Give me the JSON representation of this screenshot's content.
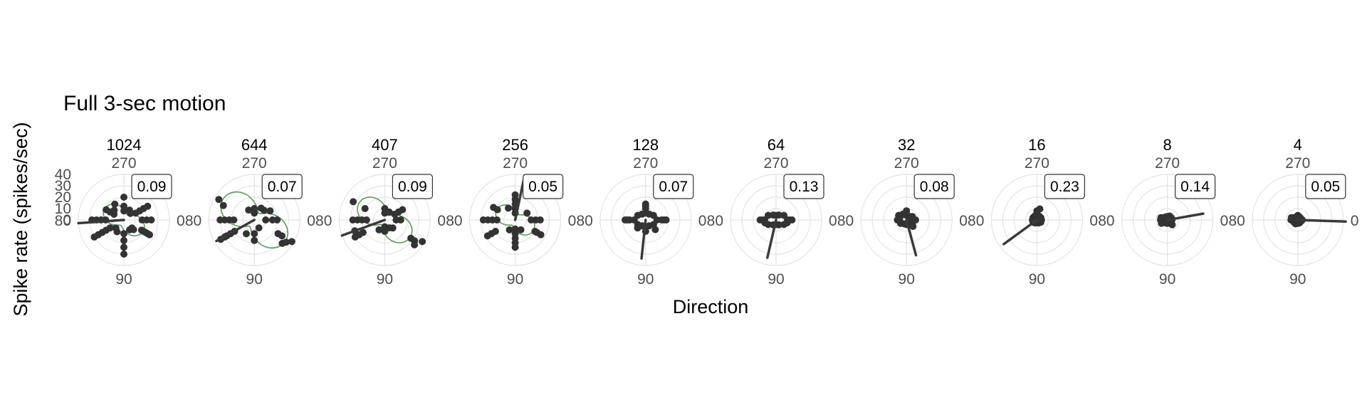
{
  "chart_data": {
    "type": "scatter",
    "coordinate_system": "polar",
    "title": "Full 3-sec motion",
    "xlabel": "Direction",
    "ylabel": "Spike rate (spikes/sec)",
    "radial_ticks": [
      0,
      10,
      20,
      30,
      40
    ],
    "radial_range": [
      0,
      40
    ],
    "angle_tick_labels": [
      "0",
      "90",
      "180",
      "270"
    ],
    "angle_tick_labels_shown": [
      "0",
      "90",
      "80",
      "270"
    ],
    "grid": true,
    "facets": [
      {
        "label": "1024",
        "index_value": "0.09",
        "points": [
          [
            30,
            18
          ],
          [
            30,
            20
          ],
          [
            30,
            22
          ],
          [
            30,
            24
          ],
          [
            30,
            26
          ],
          [
            45,
            10
          ],
          [
            45,
            12
          ],
          [
            90,
            12
          ],
          [
            90,
            18
          ],
          [
            90,
            24
          ],
          [
            90,
            30
          ],
          [
            120,
            12
          ],
          [
            135,
            10
          ],
          [
            150,
            14
          ],
          [
            150,
            18
          ],
          [
            150,
            22
          ],
          [
            150,
            26
          ],
          [
            150,
            30
          ],
          [
            180,
            16
          ],
          [
            180,
            20
          ],
          [
            180,
            24
          ],
          [
            180,
            28
          ],
          [
            210,
            10
          ],
          [
            210,
            14
          ],
          [
            210,
            18
          ],
          [
            225,
            12
          ],
          [
            240,
            16
          ],
          [
            270,
            8
          ],
          [
            270,
            12
          ],
          [
            270,
            20
          ],
          [
            300,
            10
          ],
          [
            330,
            12
          ],
          [
            330,
            16
          ],
          [
            330,
            20
          ],
          [
            330,
            24
          ],
          [
            0,
            16
          ],
          [
            0,
            20
          ],
          [
            0,
            24
          ],
          [
            315,
            8
          ],
          [
            60,
            10
          ]
        ],
        "vector": {
          "angle": 176,
          "length": 40
        },
        "fit": {
          "b0": 12.5,
          "amp": 7.0,
          "phase": 30
        }
      },
      {
        "label": "644",
        "index_value": "0.07",
        "points": [
          [
            30,
            24
          ],
          [
            30,
            28
          ],
          [
            35,
            34
          ],
          [
            30,
            38
          ],
          [
            40,
            32
          ],
          [
            150,
            20
          ],
          [
            150,
            24
          ],
          [
            150,
            28
          ],
          [
            150,
            30
          ],
          [
            150,
            34
          ],
          [
            210,
            36
          ],
          [
            205,
            30
          ],
          [
            180,
            18
          ],
          [
            180,
            22
          ],
          [
            180,
            26
          ],
          [
            180,
            30
          ],
          [
            90,
            12
          ],
          [
            90,
            18
          ],
          [
            270,
            6
          ],
          [
            270,
            10
          ],
          [
            315,
            12
          ],
          [
            330,
            16
          ],
          [
            300,
            12
          ],
          [
            0,
            10
          ],
          [
            0,
            16
          ],
          [
            0,
            20
          ],
          [
            60,
            8
          ],
          [
            120,
            14
          ],
          [
            240,
            10
          ]
        ],
        "vector": {
          "angle": 151,
          "length": 38
        },
        "fit": {
          "b0": 20.0,
          "amp": 13.0,
          "phase": 35
        }
      },
      {
        "label": "407",
        "index_value": "0.09",
        "points": [
          [
            35,
            28
          ],
          [
            35,
            32
          ],
          [
            30,
            38
          ],
          [
            40,
            34
          ],
          [
            150,
            22
          ],
          [
            150,
            26
          ],
          [
            150,
            30
          ],
          [
            160,
            28
          ],
          [
            210,
            32
          ],
          [
            210,
            20
          ],
          [
            180,
            16
          ],
          [
            180,
            20
          ],
          [
            180,
            24
          ],
          [
            180,
            28
          ],
          [
            90,
            6
          ],
          [
            90,
            10
          ],
          [
            270,
            6
          ],
          [
            270,
            10
          ],
          [
            330,
            10
          ],
          [
            330,
            14
          ],
          [
            330,
            18
          ],
          [
            0,
            10
          ],
          [
            0,
            14
          ],
          [
            45,
            10
          ],
          [
            60,
            8
          ],
          [
            120,
            10
          ],
          [
            300,
            8
          ]
        ],
        "vector": {
          "angle": 160,
          "length": 40
        },
        "fit": {
          "b0": 16.0,
          "amp": 11.0,
          "phase": 35
        }
      },
      {
        "label": "256",
        "index_value": "0.05",
        "points": [
          [
            30,
            20
          ],
          [
            30,
            22
          ],
          [
            30,
            26
          ],
          [
            150,
            20
          ],
          [
            150,
            24
          ],
          [
            150,
            28
          ],
          [
            180,
            16
          ],
          [
            180,
            20
          ],
          [
            180,
            24
          ],
          [
            180,
            28
          ],
          [
            210,
            18
          ],
          [
            210,
            22
          ],
          [
            90,
            8
          ],
          [
            90,
            12
          ],
          [
            90,
            16
          ],
          [
            90,
            20
          ],
          [
            90,
            24
          ],
          [
            270,
            6
          ],
          [
            270,
            10
          ],
          [
            270,
            14
          ],
          [
            270,
            18
          ],
          [
            270,
            22
          ],
          [
            0,
            14
          ],
          [
            0,
            18
          ],
          [
            0,
            22
          ],
          [
            330,
            12
          ],
          [
            120,
            10
          ],
          [
            240,
            12
          ],
          [
            60,
            10
          ]
        ],
        "vector": {
          "angle": 282,
          "length": 40
        },
        "fit": {
          "b0": 12.0,
          "amp": 6.5,
          "phase": 30
        }
      },
      {
        "label": "128",
        "index_value": "0.07",
        "points": [
          [
            0,
            10
          ],
          [
            0,
            14
          ],
          [
            0,
            16
          ],
          [
            0,
            18
          ],
          [
            180,
            10
          ],
          [
            180,
            14
          ],
          [
            180,
            16
          ],
          [
            180,
            18
          ],
          [
            90,
            6
          ],
          [
            90,
            10
          ],
          [
            270,
            6
          ],
          [
            270,
            10
          ],
          [
            270,
            12
          ],
          [
            270,
            14
          ],
          [
            30,
            8
          ],
          [
            150,
            8
          ],
          [
            210,
            8
          ],
          [
            330,
            8
          ],
          [
            60,
            6
          ],
          [
            120,
            6
          ],
          [
            240,
            6
          ],
          [
            300,
            6
          ],
          [
            45,
            12
          ],
          [
            135,
            10
          ]
        ],
        "vector": {
          "angle": 96,
          "length": 34
        },
        "fit": null
      },
      {
        "label": "64",
        "index_value": "0.13",
        "points": [
          [
            0,
            10
          ],
          [
            0,
            12
          ],
          [
            0,
            14
          ],
          [
            180,
            10
          ],
          [
            180,
            12
          ],
          [
            180,
            14
          ],
          [
            90,
            4
          ],
          [
            270,
            4
          ],
          [
            30,
            8
          ],
          [
            150,
            8
          ],
          [
            210,
            8
          ],
          [
            330,
            8
          ],
          [
            60,
            5
          ],
          [
            120,
            5
          ],
          [
            240,
            5
          ],
          [
            300,
            5
          ],
          [
            15,
            10
          ],
          [
            165,
            10
          ]
        ],
        "vector": {
          "angle": 103,
          "length": 34
        },
        "fit": null
      },
      {
        "label": "32",
        "index_value": "0.08",
        "points": [
          [
            0,
            8
          ],
          [
            0,
            4
          ],
          [
            180,
            8
          ],
          [
            180,
            6
          ],
          [
            90,
            4
          ],
          [
            270,
            4
          ],
          [
            270,
            8
          ],
          [
            30,
            6
          ],
          [
            150,
            6
          ],
          [
            210,
            8
          ],
          [
            330,
            6
          ],
          [
            60,
            4
          ],
          [
            120,
            4
          ],
          [
            240,
            6
          ],
          [
            300,
            4
          ],
          [
            45,
            8
          ],
          [
            225,
            6
          ]
        ],
        "vector": {
          "angle": 75,
          "length": 32
        },
        "fit": null
      },
      {
        "label": "16",
        "index_value": "0.23",
        "points": [
          [
            0,
            4
          ],
          [
            180,
            4
          ],
          [
            90,
            2
          ],
          [
            270,
            4
          ],
          [
            270,
            6
          ],
          [
            270,
            8
          ],
          [
            30,
            4
          ],
          [
            150,
            4
          ],
          [
            210,
            4
          ],
          [
            330,
            4
          ],
          [
            60,
            3
          ],
          [
            120,
            3
          ],
          [
            240,
            4
          ],
          [
            300,
            4
          ],
          [
            285,
            10
          ]
        ],
        "vector": {
          "angle": 144,
          "length": 36
        },
        "fit": null
      },
      {
        "label": "8",
        "index_value": "0.14",
        "points": [
          [
            0,
            4
          ],
          [
            180,
            4
          ],
          [
            180,
            6
          ],
          [
            90,
            3
          ],
          [
            270,
            3
          ],
          [
            30,
            4
          ],
          [
            150,
            6
          ],
          [
            210,
            4
          ],
          [
            330,
            4
          ],
          [
            60,
            3
          ],
          [
            120,
            3
          ],
          [
            240,
            3
          ],
          [
            300,
            4
          ],
          [
            45,
            6
          ],
          [
            200,
            6
          ]
        ],
        "vector": {
          "angle": 350,
          "length": 32
        },
        "fit": null
      },
      {
        "label": "4",
        "index_value": "0.05",
        "points": [
          [
            0,
            4
          ],
          [
            180,
            4
          ],
          [
            180,
            6
          ],
          [
            90,
            3
          ],
          [
            270,
            4
          ],
          [
            30,
            3
          ],
          [
            150,
            4
          ],
          [
            210,
            4
          ],
          [
            330,
            3
          ],
          [
            60,
            3
          ],
          [
            120,
            4
          ],
          [
            240,
            3
          ],
          [
            300,
            3
          ],
          [
            200,
            6
          ]
        ],
        "vector": {
          "angle": 2,
          "length": 42
        },
        "fit": null
      }
    ]
  }
}
